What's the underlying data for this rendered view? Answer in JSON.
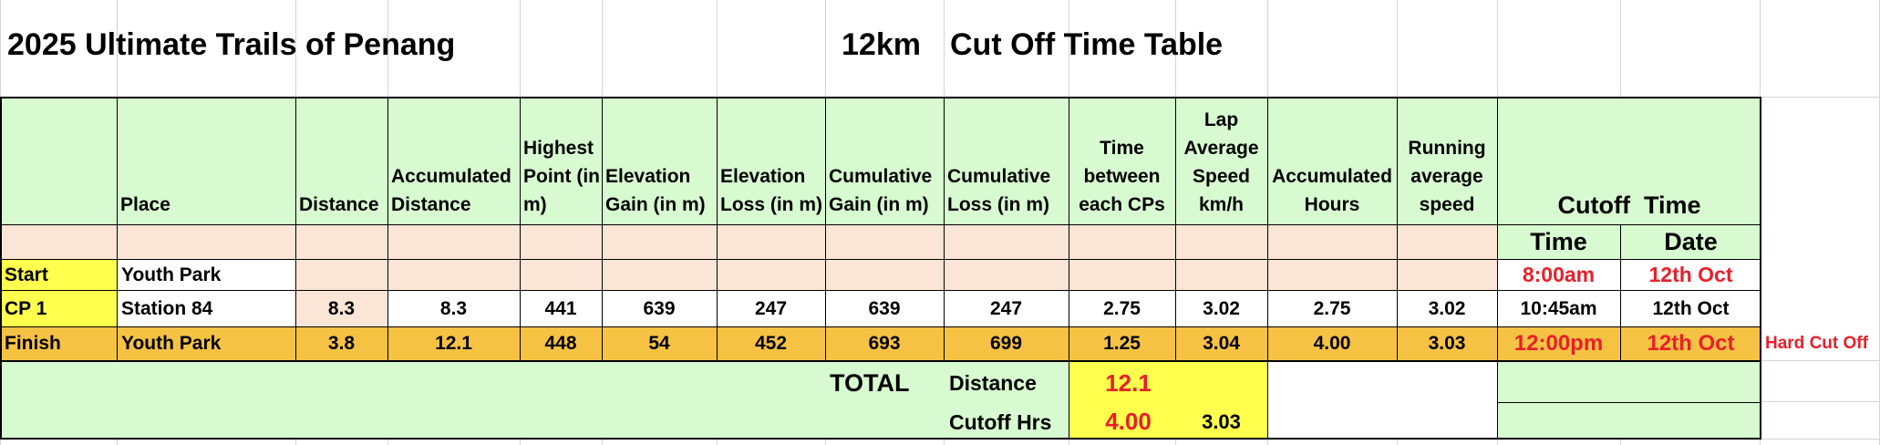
{
  "title_left": "2025 Ultimate Trails of Penang",
  "title_km": "12km",
  "title_right": "Cut Off Time Table",
  "headers": {
    "place": "Place",
    "distance": "Distance",
    "accumulated_distance": "Accumulated Distance",
    "highest_point": "Highest Point (in m)",
    "elevation_gain": "Elevation Gain (in m)",
    "elevation_loss": "Elevation Loss (in m)",
    "cumulative_gain": "Cumulative Gain (in m)",
    "cumulative_loss": "Cumulative Loss (in m)",
    "time_between": "Time between each CPs",
    "lap_speed": "Lap Average Speed km/h",
    "accumulated_hours": "Accumulated Hours",
    "running_speed": "Running average speed",
    "cutoff": "Cutoff  Time",
    "time": "Time",
    "date": "Date"
  },
  "rows": [
    {
      "label": "Start",
      "place": "Youth Park",
      "distance": "",
      "acc_distance": "",
      "highest": "",
      "gain": "",
      "loss": "",
      "cum_gain": "",
      "cum_loss": "",
      "time_between": "",
      "lap_speed": "",
      "acc_hours": "",
      "run_speed": "",
      "time": "8:00am",
      "date": "12th Oct",
      "note": ""
    },
    {
      "label": "CP 1",
      "place": "Station 84",
      "distance": "8.3",
      "acc_distance": "8.3",
      "highest": "441",
      "gain": "639",
      "loss": "247",
      "cum_gain": "639",
      "cum_loss": "247",
      "time_between": "2.75",
      "lap_speed": "3.02",
      "acc_hours": "2.75",
      "run_speed": "3.02",
      "time": "10:45am",
      "date": "12th Oct",
      "note": ""
    },
    {
      "label": "Finish",
      "place": "Youth Park",
      "distance": "3.8",
      "acc_distance": "12.1",
      "highest": "448",
      "gain": "54",
      "loss": "452",
      "cum_gain": "693",
      "cum_loss": "699",
      "time_between": "1.25",
      "lap_speed": "3.04",
      "acc_hours": "4.00",
      "run_speed": "3.03",
      "time": "12:00pm",
      "date": "12th Oct",
      "note": "Hard Cut Off"
    }
  ],
  "total": {
    "label": "TOTAL",
    "distance_label": "Distance",
    "distance_value": "12.1",
    "cutoff_label": "Cutoff Hrs",
    "cutoff_value": "4.00",
    "speed_value": "3.03"
  },
  "colors": {
    "header_green": "#d7fad0",
    "peach": "#fbe5d6",
    "yellow": "#ffff4d",
    "finish_orange": "#f6c244",
    "red_text": "#e8202a"
  }
}
